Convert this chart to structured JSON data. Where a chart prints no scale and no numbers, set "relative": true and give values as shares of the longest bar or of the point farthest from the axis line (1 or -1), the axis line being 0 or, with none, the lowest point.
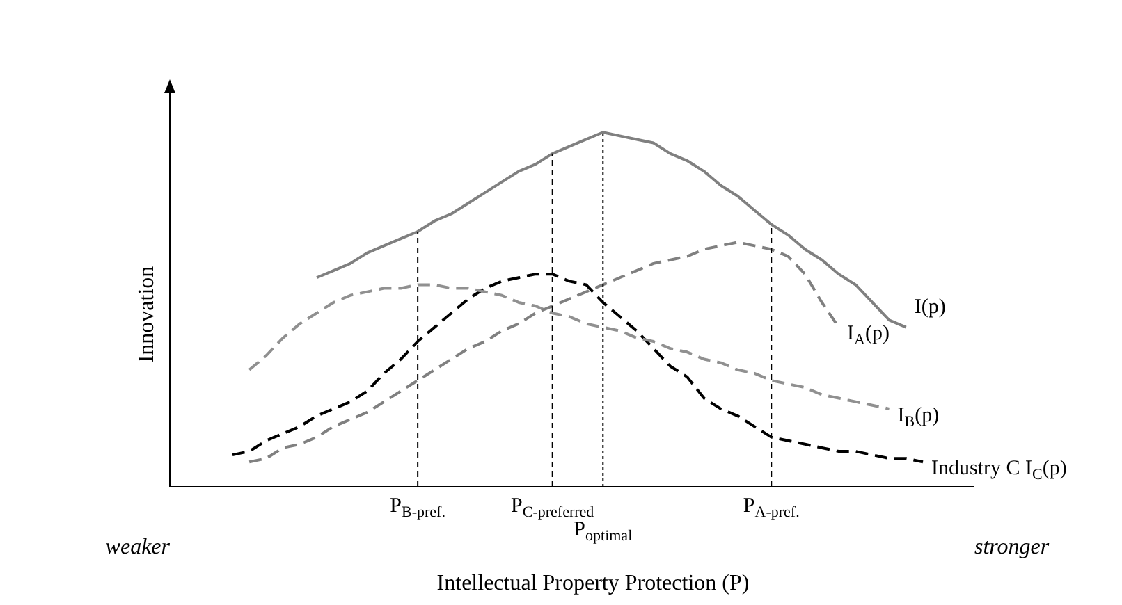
{
  "chart_data": {
    "type": "line",
    "relative": true,
    "xlabel": "Intellectual Property Protection (P)",
    "ylabel": "Innovation",
    "legend": false,
    "marker": "none",
    "categories": [
      null,
      null,
      null,
      null,
      null,
      null,
      null,
      null,
      null,
      null,
      null,
      "P$_{B-pref.}$",
      null,
      null,
      null,
      null,
      null,
      null,
      null,
      "P$_{C-preferred}$",
      null,
      null,
      "P$_{optimal}$",
      null,
      null,
      null,
      null,
      null,
      null,
      null,
      null,
      null,
      "P$_{A-pref.}$",
      null,
      null,
      null,
      null,
      null,
      null,
      null,
      null,
      null
    ],
    "series": [
      {
        "name": "I(p)",
        "color": "#808080",
        "line_style": "solid",
        "values": [
          null,
          null,
          null,
          null,
          null,
          0.59,
          0.61,
          0.63,
          0.66,
          0.68,
          0.7,
          0.72,
          0.75,
          0.77,
          0.8,
          0.83,
          0.86,
          0.89,
          0.91,
          0.94,
          0.96,
          0.98,
          1,
          0.99,
          0.98,
          0.97,
          0.94,
          0.92,
          0.89,
          0.85,
          0.82,
          0.78,
          0.74,
          0.71,
          0.67,
          0.64,
          0.6,
          0.57,
          0.52,
          0.47,
          0.45,
          null
        ]
      },
      {
        "name": "I$_{A}$(p)",
        "color": "#808080",
        "line_style": "dashed",
        "values": [
          null,
          0.07,
          0.08,
          0.11,
          0.12,
          0.14,
          0.17,
          0.19,
          0.21,
          0.24,
          0.27,
          0.3,
          0.33,
          0.36,
          0.39,
          0.41,
          0.44,
          0.46,
          0.49,
          0.51,
          0.53,
          0.55,
          0.57,
          0.59,
          0.61,
          0.63,
          0.64,
          0.65,
          0.67,
          0.68,
          0.69,
          0.68,
          0.67,
          0.65,
          0.6,
          0.52,
          0.45,
          null,
          null,
          null,
          null,
          null
        ]
      },
      {
        "name": "I$_{B}$(p)",
        "color": "#909090",
        "line_style": "dashed",
        "values": [
          null,
          0.33,
          0.37,
          0.42,
          0.46,
          0.49,
          0.52,
          0.54,
          0.55,
          0.56,
          0.56,
          0.57,
          0.57,
          0.56,
          0.56,
          0.55,
          0.54,
          0.52,
          0.51,
          0.49,
          0.48,
          0.46,
          0.45,
          0.44,
          0.42,
          0.41,
          0.39,
          0.38,
          0.36,
          0.35,
          0.33,
          0.32,
          0.3,
          0.29,
          0.28,
          0.26,
          0.25,
          0.24,
          0.23,
          0.22,
          null,
          null
        ]
      },
      {
        "name": "Industry C I$_{C}$(p)",
        "color": "#000000",
        "line_style": "dashed",
        "values": [
          0.09,
          0.1,
          0.13,
          0.15,
          0.17,
          0.2,
          0.22,
          0.24,
          0.27,
          0.32,
          0.36,
          0.41,
          0.45,
          0.49,
          0.53,
          0.56,
          0.58,
          0.59,
          0.6,
          0.6,
          0.58,
          0.57,
          0.52,
          0.48,
          0.44,
          0.39,
          0.34,
          0.31,
          0.25,
          0.22,
          0.2,
          0.17,
          0.14,
          0.13,
          0.12,
          0.11,
          0.1,
          0.1,
          0.09,
          0.08,
          0.08,
          0.07
        ]
      }
    ],
    "ref_lines": [
      {
        "axis": "x",
        "value": "P$_{B-pref.}$",
        "color": "#000000",
        "line_style": "dashed"
      },
      {
        "axis": "x",
        "value": "P$_{C-preferred}$",
        "color": "#000000",
        "line_style": "dashed"
      },
      {
        "axis": "x",
        "value": "P$_{optimal}$",
        "color": "#000000",
        "line_style": "dotted"
      },
      {
        "axis": "x",
        "value": "P$_{A-pref.}$",
        "color": "#000000",
        "line_style": "dashed"
      }
    ],
    "annotations": [
      "weaker",
      "stronger"
    ]
  }
}
